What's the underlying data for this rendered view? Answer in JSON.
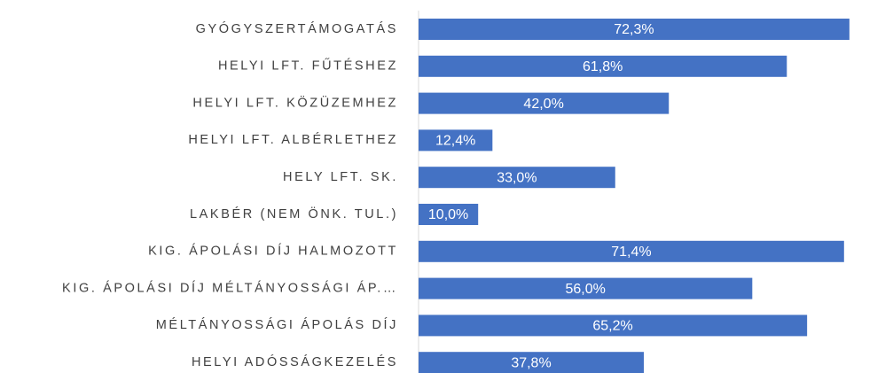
{
  "chart_data": {
    "type": "bar",
    "orientation": "horizontal",
    "color": "#4472c4",
    "categories": [
      "GYÓGYSZERTÁMOGATÁS",
      "HELYI LFT. FŰTÉSHEZ",
      "HELYI LFT. KÖZÜZEMHEZ",
      "HELYI LFT. ALBÉRLETHEZ",
      "HELY LFT. SK.",
      "LAKBÉR (NEM ÖNK. TUL.)",
      "KIG. ÁPOLÁSI DÍJ HALMOZOTT",
      "KIG. ÁPOLÁSI DÍJ MÉLTÁNYOSSÁGI ÁP.…",
      "MÉLTÁNYOSSÁGI ÁPOLÁS DÍJ",
      "HELYI ADÓSSÁGKEZELÉS"
    ],
    "values": [
      72.3,
      61.8,
      42.0,
      12.4,
      33.0,
      10.0,
      71.4,
      56.0,
      65.2,
      37.8
    ],
    "value_labels": [
      "72,3%",
      "61,8%",
      "42,0%",
      "12,4%",
      "33,0%",
      "10,0%",
      "71,4%",
      "56,0%",
      "65,2%",
      "37,8%"
    ]
  }
}
